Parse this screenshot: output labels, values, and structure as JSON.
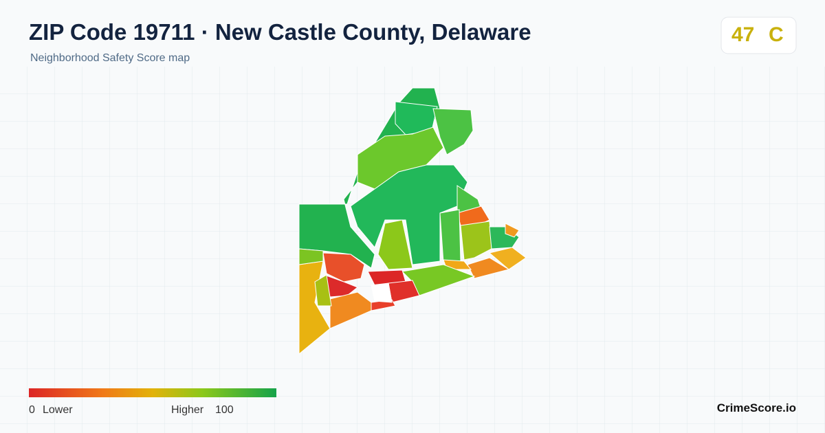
{
  "header": {
    "title": "ZIP Code 19711 · New Castle County, Delaware",
    "subtitle": "Neighborhood Safety Score map"
  },
  "score": {
    "value": 47,
    "grade": "C"
  },
  "legend": {
    "min": 0,
    "min_label": "Lower",
    "max_label": "Higher",
    "max": 100
  },
  "brand": "CrimeScore.io"
}
